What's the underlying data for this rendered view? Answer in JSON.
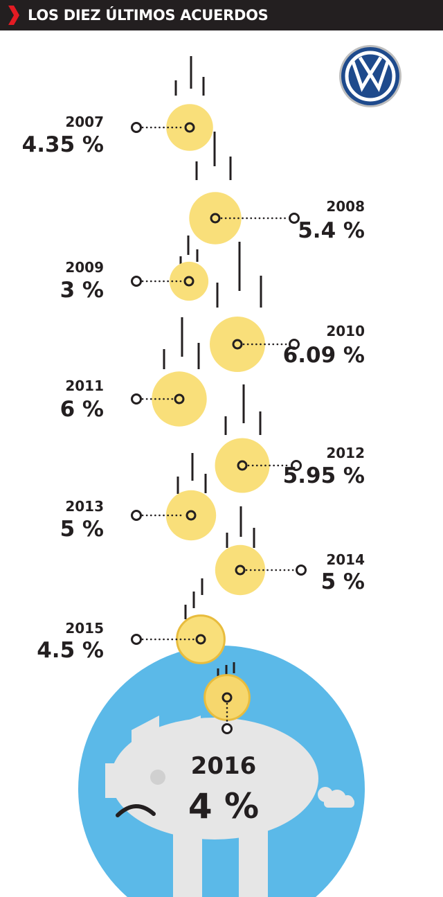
{
  "header": {
    "title": "LOS DIEZ ÚLTIMOS ACUERDOS"
  },
  "icons": {
    "header": "red-chevron-icon",
    "brand": "volkswagen-logo",
    "bank": "piggy-bank-icon"
  },
  "colors": {
    "header_bg": "#231f20",
    "chevron": "#e31b23",
    "coin": "#f9df7a",
    "coin_final": "#f6d76d",
    "coin_rim": "#e8bc3d",
    "bank_circle": "#5bb9e8",
    "piggy": "#e6e6e6",
    "ink": "#231f20",
    "logo_blue": "#1e4a8c"
  },
  "chart_data": {
    "type": "bubble",
    "title": "LOS DIEZ ÚLTIMOS ACUERDOS",
    "x": [
      "2007",
      "2008",
      "2009",
      "2010",
      "2011",
      "2012",
      "2013",
      "2014",
      "2015",
      "2016"
    ],
    "values": [
      4.35,
      5.4,
      3,
      6.09,
      6,
      5.95,
      5,
      5,
      4.5,
      4
    ],
    "labels": [
      "4.35 %",
      "5.4 %",
      "3 %",
      "6.09 %",
      "6 %",
      "5.95 %",
      "5 %",
      "5 %",
      "4.5 %",
      "4 %"
    ],
    "unit": "%"
  }
}
